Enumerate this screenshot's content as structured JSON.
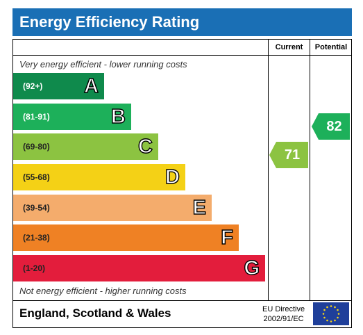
{
  "title": "Energy Efficiency Rating",
  "columns": {
    "current": "Current",
    "potential": "Potential"
  },
  "top_caption": "Very energy efficient - lower running costs",
  "bottom_caption": "Not energy efficient - higher running costs",
  "bands": [
    {
      "range": "(92+)",
      "letter": "A",
      "color": "#0f8a4c",
      "dark_text": false
    },
    {
      "range": "(81-91)",
      "letter": "B",
      "color": "#1db05a",
      "dark_text": false
    },
    {
      "range": "(69-80)",
      "letter": "C",
      "color": "#8cc341",
      "dark_text": true
    },
    {
      "range": "(55-68)",
      "letter": "D",
      "color": "#f4d116",
      "dark_text": true
    },
    {
      "range": "(39-54)",
      "letter": "E",
      "color": "#f4ac6c",
      "dark_text": true
    },
    {
      "range": "(21-38)",
      "letter": "F",
      "color": "#ef8124",
      "dark_text": true
    },
    {
      "range": "(1-20)",
      "letter": "G",
      "color": "#e31d3c",
      "dark_text": true
    }
  ],
  "current": {
    "value": "71",
    "color": "#8cc341"
  },
  "potential": {
    "value": "82",
    "color": "#1db05a"
  },
  "footer": {
    "region": "England, Scotland & Wales",
    "directive_line1": "EU Directive",
    "directive_line2": "2002/91/EC"
  }
}
